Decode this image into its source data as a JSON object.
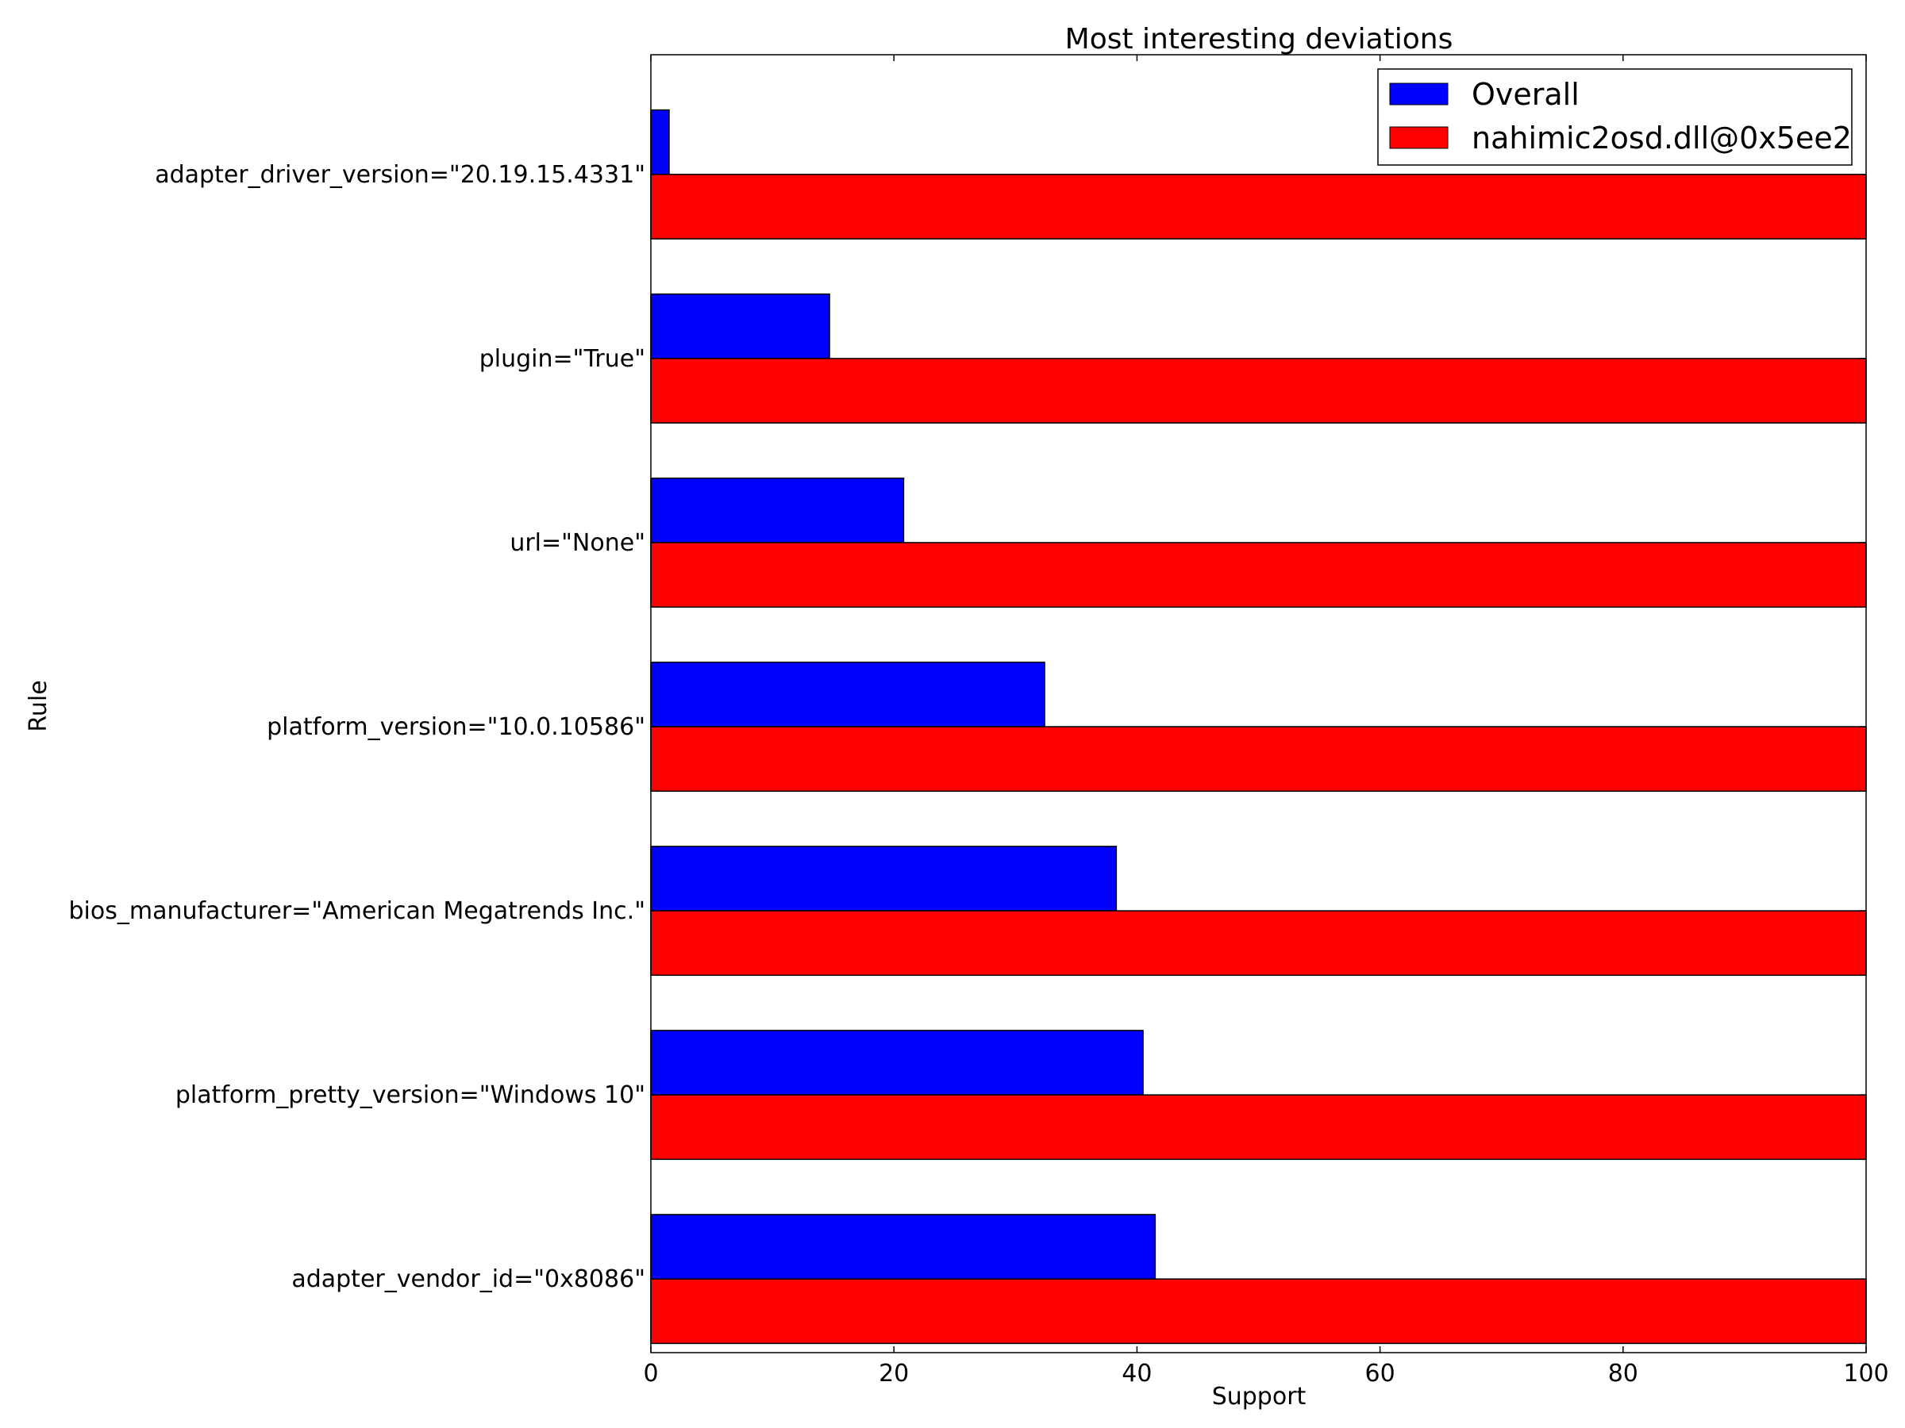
{
  "chart_data": {
    "type": "bar",
    "orientation": "horizontal",
    "title": "Most interesting deviations",
    "xlabel": "Support",
    "ylabel": "Rule",
    "xlim": [
      0,
      100
    ],
    "xticks": [
      "0",
      "20",
      "40",
      "60",
      "80",
      "100"
    ],
    "grid": false,
    "legend_position": "top-right",
    "categories": [
      "adapter_driver_version=\"20.19.15.4331\"",
      "plugin=\"True\"",
      "url=\"None\"",
      "platform_version=\"10.0.10586\"",
      "bios_manufacturer=\"American Megatrends Inc.\"",
      "platform_pretty_version=\"Windows 10\"",
      "adapter_vendor_id=\"0x8086\""
    ],
    "series": [
      {
        "name": "Overall",
        "color": "#0000ff",
        "values": [
          1.5,
          14.7,
          20.8,
          32.4,
          38.3,
          40.5,
          41.5
        ]
      },
      {
        "name": "nahimic2osd.dll@0x5ee2",
        "color": "#ff0000",
        "values": [
          100,
          100,
          100,
          100,
          100,
          100,
          100
        ]
      }
    ]
  }
}
